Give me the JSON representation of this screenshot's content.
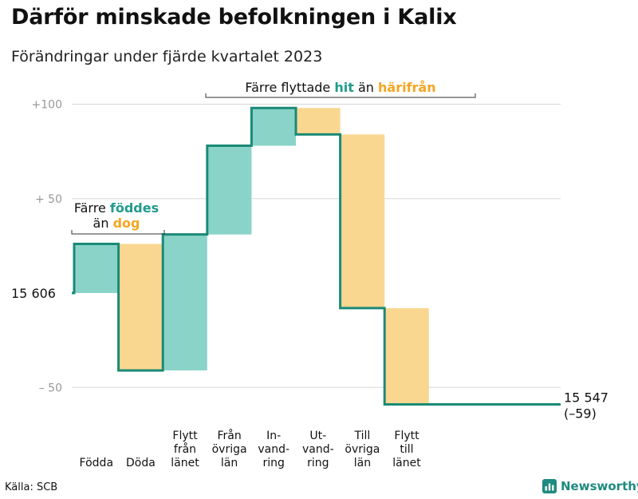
{
  "title": "Därför minskade befolkningen i Kalix",
  "subtitle": "Förändringar under fjärde kvartalet 2023",
  "source": "Källa: SCB",
  "brand": "Newsworthy",
  "colors": {
    "increase": "#8ad3c9",
    "decrease": "#fad791",
    "line": "#1a8a76",
    "teal_text": "#1f9b8c",
    "orange_text": "#f5a521",
    "grid": "#d7d7d7",
    "tick": "#999999"
  },
  "chart_data": {
    "type": "waterfall",
    "title": "Därför minskade befolkningen i Kalix",
    "subtitle": "Förändringar under fjärde kvartalet 2023",
    "start_value": 15606,
    "start_label": "15  606",
    "end_value": 15547,
    "end_label": "15 547",
    "end_change_label": "(–59)",
    "ylim": [
      -60,
      100
    ],
    "yticks": [
      {
        "value": 100,
        "label": "+100"
      },
      {
        "value": 50,
        "label": "+  50"
      },
      {
        "value": -50,
        "label": "–  50"
      }
    ],
    "steps": [
      {
        "label": [
          "Födda"
        ],
        "change": 26
      },
      {
        "label": [
          "Döda"
        ],
        "change": -67
      },
      {
        "label": [
          "Flytt",
          "från",
          "länet"
        ],
        "change": 72
      },
      {
        "label": [
          "Från",
          "övriga",
          "län"
        ],
        "change": 47
      },
      {
        "label": [
          "In-",
          "vand-",
          "ring"
        ],
        "change": 20
      },
      {
        "label": [
          "Ut-",
          "vand-",
          "ring"
        ],
        "change": -14
      },
      {
        "label": [
          "Till",
          "övriga",
          "län"
        ],
        "change": -92
      },
      {
        "label": [
          "Flytt",
          "till",
          "länet"
        ],
        "change": -51
      }
    ],
    "annotations": [
      {
        "parts": [
          {
            "text": "Färre ",
            "tone": "plain"
          },
          {
            "text": "föddes",
            "tone": "increase"
          }
        ],
        "parts2": [
          {
            "text": "än ",
            "tone": "plain"
          },
          {
            "text": "dog",
            "tone": "decrease"
          }
        ]
      },
      {
        "parts": [
          {
            "text": "Färre flyttade ",
            "tone": "plain"
          },
          {
            "text": "hit",
            "tone": "increase"
          },
          {
            "text": "  än ",
            "tone": "plain"
          },
          {
            "text": "härifrån",
            "tone": "decrease"
          }
        ]
      }
    ]
  }
}
